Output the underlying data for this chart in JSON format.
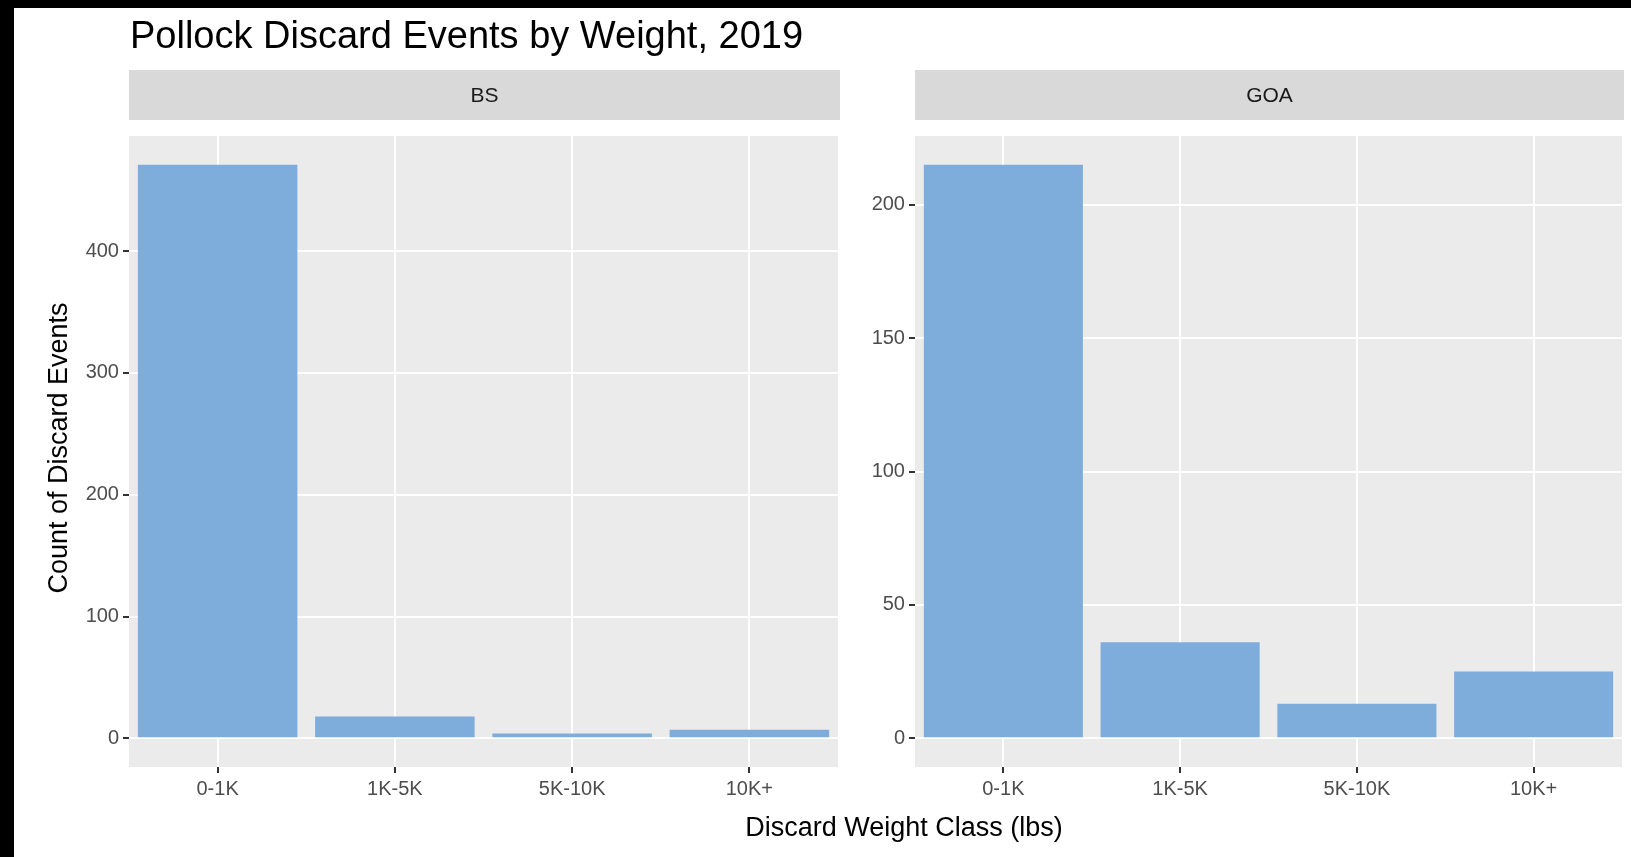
{
  "chart_data": [
    {
      "type": "bar",
      "title": "Pollock Discard Events by Weight, 2019",
      "subtitle": "BS",
      "xlabel": "Discard Weight Class (lbs)",
      "ylabel": "Count of Discard Events",
      "categories": [
        "0-1K",
        "1K-5K",
        "5K-10K",
        "10K+"
      ],
      "values": [
        471,
        18,
        4,
        7
      ],
      "color": "#7faddb",
      "ylim": [
        -23.55,
        494.55
      ],
      "yticks": [
        0,
        100,
        200,
        300,
        400
      ],
      "grid": true
    },
    {
      "type": "bar",
      "subtitle": "GOA",
      "categories": [
        "0-1K",
        "1K-5K",
        "5K-10K",
        "10K+"
      ],
      "values": [
        215,
        36,
        13,
        25
      ],
      "color": "#7faddb",
      "ylim": [
        -10.75,
        225.75
      ],
      "yticks": [
        0,
        50,
        100,
        150,
        200
      ],
      "grid": true
    }
  ]
}
